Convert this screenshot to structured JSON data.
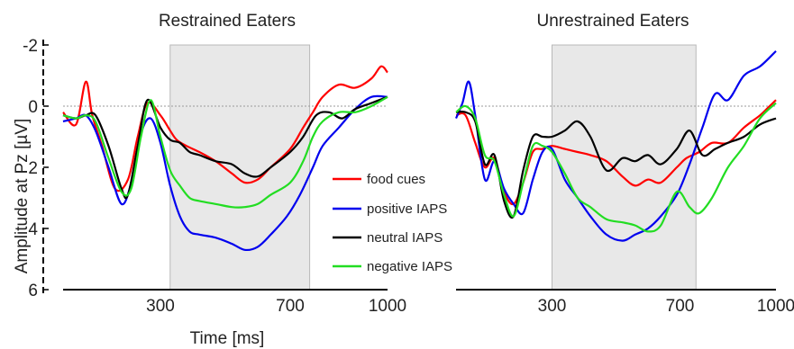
{
  "chart_data": [
    {
      "type": "line",
      "title": "Restrained Eaters",
      "xlabel": "Time [ms]",
      "ylabel": "Amplitude at Pz [µV]",
      "x_ticks": [
        300,
        700,
        1000
      ],
      "y_ticks": [
        -2,
        0,
        2,
        4,
        6
      ],
      "y_tick_labels": [
        "-2",
        "0",
        "2",
        "4",
        "6"
      ],
      "xlim": [
        0,
        1000
      ],
      "ylim": [
        -2,
        6
      ],
      "y_inverted": true,
      "shaded_window_ms": [
        330,
        760
      ],
      "zero_reference_line": true,
      "series": [
        {
          "name": "food cues",
          "color": "#ff0000",
          "x": [
            0,
            40,
            70,
            90,
            120,
            160,
            200,
            230,
            260,
            300,
            330,
            350,
            380,
            420,
            470,
            520,
            560,
            600,
            640,
            700,
            740,
            770,
            800,
            850,
            900,
            950,
            980,
            1000
          ],
          "y": [
            0.2,
            0.6,
            -0.8,
            0.3,
            1.3,
            2.7,
            2.4,
            1.0,
            -0.1,
            0.3,
            0.8,
            1.1,
            1.3,
            1.5,
            1.8,
            2.2,
            2.5,
            2.4,
            2.0,
            1.4,
            0.7,
            0.2,
            -0.3,
            -0.7,
            -0.6,
            -0.9,
            -1.3,
            -1.1
          ]
        },
        {
          "name": "positive IAPS",
          "color": "#0000ee",
          "x": [
            0,
            40,
            70,
            100,
            140,
            180,
            210,
            240,
            270,
            300,
            330,
            360,
            390,
            420,
            470,
            520,
            560,
            600,
            640,
            690,
            730,
            770,
            800,
            850,
            900,
            950,
            1000
          ],
          "y": [
            0.5,
            0.4,
            0.3,
            0.8,
            2.0,
            3.2,
            2.5,
            0.9,
            0.4,
            1.2,
            2.6,
            3.6,
            4.1,
            4.2,
            4.3,
            4.5,
            4.7,
            4.6,
            4.2,
            3.6,
            2.9,
            2.0,
            1.3,
            0.7,
            0.1,
            -0.3,
            -0.3
          ]
        },
        {
          "name": "neutral IAPS",
          "color": "#000000",
          "x": [
            0,
            40,
            70,
            100,
            140,
            180,
            200,
            230,
            260,
            300,
            330,
            360,
            390,
            420,
            470,
            520,
            560,
            600,
            640,
            700,
            740,
            780,
            820,
            860,
            900,
            950,
            1000
          ],
          "y": [
            0.3,
            0.4,
            0.3,
            0.3,
            1.3,
            2.7,
            2.9,
            1.3,
            -0.2,
            0.7,
            1.1,
            1.2,
            1.5,
            1.6,
            1.8,
            1.9,
            2.2,
            2.3,
            2.0,
            1.5,
            1.0,
            0.3,
            0.2,
            0.4,
            0.1,
            -0.1,
            -0.3
          ]
        },
        {
          "name": "negative IAPS",
          "color": "#22dd22",
          "x": [
            0,
            40,
            70,
            100,
            140,
            180,
            210,
            240,
            270,
            300,
            330,
            360,
            390,
            420,
            470,
            520,
            560,
            600,
            640,
            700,
            740,
            770,
            800,
            850,
            900,
            950,
            1000
          ],
          "y": [
            0.3,
            0.4,
            0.3,
            0.5,
            1.7,
            2.8,
            2.7,
            1.0,
            -0.2,
            1.0,
            2.1,
            2.6,
            3.0,
            3.1,
            3.2,
            3.3,
            3.3,
            3.2,
            2.9,
            2.5,
            1.8,
            1.0,
            0.5,
            0.2,
            0.2,
            0.0,
            -0.3
          ]
        }
      ]
    },
    {
      "type": "line",
      "title": "Unrestrained Eaters",
      "x_ticks": [
        300,
        700,
        1000
      ],
      "xlim": [
        0,
        1000
      ],
      "ylim": [
        -2,
        6
      ],
      "y_inverted": true,
      "shaded_window_ms": [
        300,
        750
      ],
      "zero_reference_line": true,
      "series": [
        {
          "name": "food cues",
          "color": "#ff0000",
          "x": [
            0,
            30,
            60,
            90,
            120,
            150,
            180,
            210,
            240,
            270,
            300,
            340,
            380,
            420,
            470,
            520,
            560,
            600,
            640,
            690,
            720,
            760,
            800,
            850,
            900,
            950,
            980,
            1000
          ],
          "y": [
            0.3,
            0.3,
            1.2,
            2.0,
            1.7,
            2.8,
            3.2,
            2.5,
            1.5,
            1.4,
            1.3,
            1.4,
            1.5,
            1.6,
            1.8,
            2.3,
            2.6,
            2.4,
            2.5,
            2.0,
            1.7,
            1.5,
            1.2,
            1.2,
            0.7,
            0.3,
            0.0,
            -0.2
          ]
        },
        {
          "name": "positive IAPS",
          "color": "#0000ee",
          "x": [
            0,
            20,
            40,
            60,
            90,
            120,
            150,
            180,
            210,
            240,
            270,
            300,
            340,
            380,
            420,
            470,
            520,
            560,
            600,
            640,
            690,
            730,
            770,
            810,
            850,
            900,
            950,
            1000
          ],
          "y": [
            0.4,
            -0.1,
            -0.8,
            0.3,
            2.4,
            1.8,
            2.7,
            3.2,
            3.5,
            2.4,
            1.5,
            1.4,
            2.4,
            3.0,
            3.6,
            4.2,
            4.4,
            4.2,
            4.0,
            3.6,
            2.9,
            1.9,
            0.7,
            -0.4,
            -0.2,
            -1.0,
            -1.3,
            -1.8
          ]
        },
        {
          "name": "neutral IAPS",
          "color": "#000000",
          "x": [
            0,
            30,
            60,
            90,
            120,
            150,
            180,
            210,
            240,
            270,
            300,
            340,
            380,
            420,
            470,
            520,
            560,
            600,
            640,
            690,
            730,
            770,
            810,
            850,
            900,
            950,
            1000
          ],
          "y": [
            0.2,
            0.2,
            0.5,
            1.9,
            1.6,
            3.1,
            3.6,
            2.1,
            1.0,
            1.0,
            1.0,
            0.8,
            0.5,
            1.0,
            2.1,
            1.7,
            1.8,
            1.6,
            1.9,
            1.4,
            0.8,
            1.6,
            1.4,
            1.2,
            1.0,
            0.6,
            0.4
          ]
        },
        {
          "name": "negative IAPS",
          "color": "#22dd22",
          "x": [
            0,
            30,
            60,
            90,
            120,
            150,
            180,
            210,
            240,
            270,
            300,
            340,
            380,
            420,
            470,
            520,
            560,
            600,
            640,
            690,
            730,
            760,
            800,
            850,
            900,
            950,
            1000
          ],
          "y": [
            0.2,
            0.0,
            0.4,
            1.6,
            1.8,
            2.9,
            3.6,
            2.5,
            1.3,
            1.3,
            1.5,
            2.2,
            3.0,
            3.3,
            3.7,
            3.8,
            3.9,
            4.1,
            3.9,
            2.8,
            3.3,
            3.5,
            3.0,
            2.0,
            1.3,
            0.4,
            -0.1
          ]
        }
      ]
    }
  ]
}
